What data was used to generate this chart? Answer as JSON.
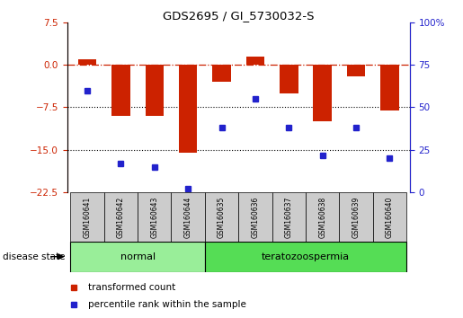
{
  "title": "GDS2695 / GI_5730032-S",
  "samples": [
    "GSM160641",
    "GSM160642",
    "GSM160643",
    "GSM160644",
    "GSM160635",
    "GSM160636",
    "GSM160637",
    "GSM160638",
    "GSM160639",
    "GSM160640"
  ],
  "bar_values": [
    1.0,
    -9.0,
    -9.0,
    -15.5,
    -3.0,
    1.5,
    -5.0,
    -10.0,
    -2.0,
    -8.0
  ],
  "percentile_values": [
    60,
    17,
    15,
    2,
    38,
    55,
    38,
    22,
    38,
    20
  ],
  "ylim_left": [
    -22.5,
    7.5
  ],
  "ylim_right": [
    0,
    100
  ],
  "left_ticks": [
    7.5,
    0,
    -7.5,
    -15,
    -22.5
  ],
  "right_ticks": [
    100,
    75,
    50,
    25,
    0
  ],
  "bar_color": "#cc2200",
  "scatter_color": "#2222cc",
  "normal_label": "normal",
  "terato_label": "teratozoospermia",
  "normal_color": "#99ee99",
  "terato_color": "#55dd55",
  "group_bg_color": "#cccccc",
  "dotted_hlines": [
    -7.5,
    -15
  ],
  "legend_bar_label": "transformed count",
  "legend_scatter_label": "percentile rank within the sample",
  "disease_state_label": "disease state"
}
